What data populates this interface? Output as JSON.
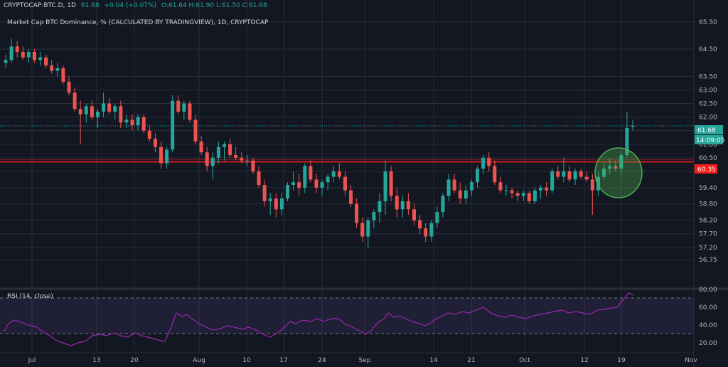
{
  "header": {
    "symbol": "CRYPTOCAP:BTC.D, 1D",
    "price": "61.68",
    "change": "+0.04 (+0.07%)",
    "ohlc": "O:61.64 H:61.90 L:61.50 C:61.68",
    "title": "Market Cap BTC Dominance, % (CALCULATED BY TRADINGVIEW), 1D, CRYPTOCAP"
  },
  "price_labels": {
    "last": "61.68",
    "countdown": "14:09:05",
    "support": "60.35"
  },
  "rsi": {
    "title": "RSI (14, close)"
  },
  "colors": {
    "background": "#131722",
    "up": "#26a69a",
    "down": "#ef5350",
    "grid": "#2a2e39",
    "support_line": "#ff1a1a",
    "rsi_line": "#9c27b0",
    "rsi_band": "#7e57c2",
    "highlight_circle": "#4caf50"
  },
  "chart_data": {
    "type": "candlestick",
    "yaxis_ticks": [
      "56.75",
      "57.20",
      "57.70",
      "58.20",
      "58.80",
      "59.40",
      "60.00",
      "60.50",
      "61.00",
      "61.50",
      "62.00",
      "62.50",
      "63.00",
      "63.50",
      "64.50",
      "65.50"
    ],
    "xaxis_ticks": [
      "Jul",
      "13",
      "20",
      "Aug",
      "10",
      "17",
      "24",
      "Sep",
      "14",
      "21",
      "Oct",
      "12",
      "19",
      "Nov"
    ],
    "ylim": [
      56.5,
      65.7
    ],
    "horizontal_line": 60.35,
    "ohlc": [
      [
        64.0,
        64.3,
        63.8,
        64.1
      ],
      [
        64.1,
        64.9,
        64.0,
        64.6
      ],
      [
        64.6,
        64.8,
        64.2,
        64.4
      ],
      [
        64.4,
        64.6,
        64.1,
        64.2
      ],
      [
        64.2,
        64.5,
        64.0,
        64.4
      ],
      [
        64.4,
        64.5,
        64.0,
        64.1
      ],
      [
        64.1,
        64.4,
        63.9,
        64.2
      ],
      [
        64.2,
        64.3,
        63.8,
        63.9
      ],
      [
        63.9,
        64.1,
        63.6,
        63.7
      ],
      [
        63.7,
        64.0,
        63.5,
        63.8
      ],
      [
        63.8,
        63.9,
        63.2,
        63.3
      ],
      [
        63.3,
        63.5,
        62.8,
        62.9
      ],
      [
        62.9,
        63.1,
        62.2,
        62.3
      ],
      [
        62.3,
        62.6,
        61.0,
        62.1
      ],
      [
        62.1,
        62.5,
        61.8,
        62.4
      ],
      [
        62.4,
        62.6,
        61.9,
        62.0
      ],
      [
        62.0,
        62.3,
        61.6,
        62.2
      ],
      [
        62.2,
        62.9,
        62.0,
        62.5
      ],
      [
        62.5,
        62.7,
        62.1,
        62.2
      ],
      [
        62.2,
        62.5,
        61.9,
        62.4
      ],
      [
        62.4,
        62.6,
        61.6,
        61.8
      ],
      [
        61.8,
        62.1,
        61.6,
        61.9
      ],
      [
        61.9,
        62.1,
        61.5,
        61.7
      ],
      [
        61.7,
        62.1,
        61.5,
        62.0
      ],
      [
        62.0,
        62.1,
        61.4,
        61.5
      ],
      [
        61.5,
        61.7,
        61.1,
        61.2
      ],
      [
        61.2,
        61.4,
        60.7,
        60.9
      ],
      [
        60.9,
        61.1,
        60.1,
        60.3
      ],
      [
        60.3,
        60.9,
        60.1,
        60.8
      ],
      [
        60.8,
        62.8,
        60.7,
        62.6
      ],
      [
        62.6,
        62.8,
        62.1,
        62.2
      ],
      [
        62.2,
        62.6,
        61.9,
        62.5
      ],
      [
        62.5,
        62.6,
        61.8,
        61.9
      ],
      [
        61.9,
        62.1,
        61.0,
        61.1
      ],
      [
        61.1,
        61.3,
        60.6,
        60.7
      ],
      [
        60.7,
        60.9,
        60.0,
        60.2
      ],
      [
        60.2,
        60.7,
        59.7,
        60.5
      ],
      [
        60.5,
        61.1,
        60.3,
        60.9
      ],
      [
        60.9,
        61.1,
        60.4,
        61.0
      ],
      [
        61.0,
        61.2,
        60.5,
        60.6
      ],
      [
        60.6,
        60.9,
        60.4,
        60.5
      ],
      [
        60.5,
        60.7,
        60.3,
        60.4
      ],
      [
        60.4,
        60.6,
        60.2,
        60.4
      ],
      [
        60.4,
        60.5,
        59.9,
        60.0
      ],
      [
        60.0,
        60.2,
        59.4,
        59.5
      ],
      [
        59.5,
        59.7,
        58.7,
        58.9
      ],
      [
        58.9,
        59.2,
        58.4,
        59.0
      ],
      [
        59.0,
        59.2,
        58.3,
        58.6
      ],
      [
        58.6,
        59.2,
        58.4,
        59.0
      ],
      [
        59.0,
        59.6,
        58.9,
        59.5
      ],
      [
        59.5,
        60.0,
        59.3,
        59.6
      ],
      [
        59.6,
        59.9,
        59.1,
        59.4
      ],
      [
        59.4,
        60.3,
        59.2,
        60.2
      ],
      [
        60.2,
        60.4,
        59.6,
        59.7
      ],
      [
        59.7,
        59.9,
        59.2,
        59.4
      ],
      [
        59.4,
        59.7,
        59.1,
        59.6
      ],
      [
        59.6,
        59.9,
        59.3,
        59.8
      ],
      [
        59.8,
        60.2,
        59.6,
        60.0
      ],
      [
        60.0,
        60.3,
        59.7,
        59.8
      ],
      [
        59.8,
        60.0,
        59.1,
        59.3
      ],
      [
        59.3,
        59.5,
        58.7,
        58.8
      ],
      [
        58.8,
        59.0,
        57.9,
        58.1
      ],
      [
        58.1,
        58.3,
        57.4,
        57.6
      ],
      [
        57.6,
        58.3,
        57.2,
        58.2
      ],
      [
        58.2,
        58.6,
        57.9,
        58.5
      ],
      [
        58.5,
        59.2,
        58.1,
        58.9
      ],
      [
        58.9,
        60.4,
        58.4,
        60.0
      ],
      [
        60.0,
        60.2,
        58.9,
        59.1
      ],
      [
        59.1,
        59.4,
        58.3,
        58.6
      ],
      [
        58.6,
        59.1,
        58.3,
        58.9
      ],
      [
        58.9,
        59.2,
        58.4,
        58.6
      ],
      [
        58.6,
        58.8,
        58.0,
        58.2
      ],
      [
        58.2,
        58.4,
        57.7,
        57.9
      ],
      [
        57.9,
        58.1,
        57.4,
        57.6
      ],
      [
        57.6,
        58.2,
        57.4,
        58.1
      ],
      [
        58.1,
        58.7,
        57.9,
        58.5
      ],
      [
        58.5,
        59.2,
        58.3,
        59.1
      ],
      [
        59.1,
        59.9,
        58.9,
        59.7
      ],
      [
        59.7,
        59.9,
        59.2,
        59.3
      ],
      [
        59.3,
        59.6,
        58.8,
        59.0
      ],
      [
        59.0,
        59.5,
        58.8,
        59.3
      ],
      [
        59.3,
        59.7,
        59.1,
        59.6
      ],
      [
        59.6,
        60.2,
        59.4,
        60.1
      ],
      [
        60.1,
        60.6,
        59.9,
        60.5
      ],
      [
        60.5,
        60.7,
        60.0,
        60.2
      ],
      [
        60.2,
        60.4,
        59.5,
        59.6
      ],
      [
        59.6,
        59.8,
        59.2,
        59.3
      ],
      [
        59.3,
        59.5,
        59.1,
        59.3
      ],
      [
        59.3,
        59.4,
        59.0,
        59.2
      ],
      [
        59.2,
        59.3,
        58.9,
        59.1
      ],
      [
        59.1,
        59.3,
        58.9,
        59.2
      ],
      [
        59.2,
        59.3,
        58.8,
        58.9
      ],
      [
        58.9,
        59.4,
        58.8,
        59.3
      ],
      [
        59.3,
        59.5,
        59.0,
        59.4
      ],
      [
        59.4,
        59.6,
        59.1,
        59.3
      ],
      [
        59.3,
        60.1,
        59.2,
        60.0
      ],
      [
        60.0,
        60.2,
        59.7,
        59.8
      ],
      [
        59.8,
        60.5,
        59.6,
        60.0
      ],
      [
        60.0,
        60.2,
        59.6,
        59.7
      ],
      [
        59.7,
        60.1,
        59.5,
        60.0
      ],
      [
        60.0,
        60.1,
        59.7,
        59.8
      ],
      [
        59.8,
        60.0,
        59.6,
        59.7
      ],
      [
        59.7,
        59.9,
        58.4,
        59.3
      ],
      [
        59.3,
        60.0,
        59.1,
        59.8
      ],
      [
        59.8,
        60.3,
        59.7,
        60.1
      ],
      [
        60.1,
        60.5,
        59.9,
        60.2
      ],
      [
        60.2,
        60.4,
        60.0,
        60.1
      ],
      [
        60.1,
        60.7,
        59.9,
        60.6
      ],
      [
        60.6,
        62.2,
        60.5,
        61.6
      ],
      [
        61.64,
        61.9,
        61.5,
        61.68
      ]
    ]
  }
}
